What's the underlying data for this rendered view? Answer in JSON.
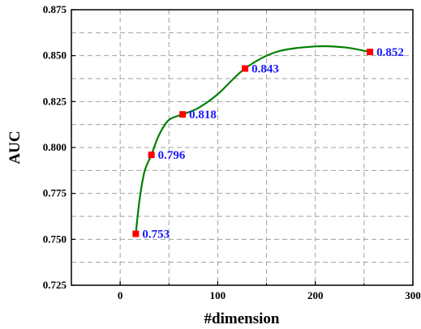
{
  "chart_data": {
    "type": "line",
    "xlabel": "#dimension",
    "ylabel": "AUC",
    "xlim": [
      -50,
      300
    ],
    "ylim": [
      0.725,
      0.875
    ],
    "xticks": [
      "0",
      "100",
      "200",
      "300"
    ],
    "yticks": [
      "0.725",
      "0.750",
      "0.775",
      "0.800",
      "0.825",
      "0.850",
      "0.875"
    ],
    "grid": true,
    "series": [
      {
        "x": [
          16,
          32,
          64,
          128,
          256
        ],
        "values": [
          0.753,
          0.796,
          0.818,
          0.843,
          0.852
        ],
        "labels": [
          "0.753",
          "0.796",
          "0.818",
          "0.843",
          "0.852"
        ]
      }
    ],
    "curve": {
      "x": [
        16,
        20,
        25,
        32,
        40,
        50,
        64,
        80,
        100,
        128,
        160,
        200,
        230,
        256
      ],
      "y": [
        0.753,
        0.772,
        0.787,
        0.796,
        0.807,
        0.815,
        0.818,
        0.8215,
        0.829,
        0.843,
        0.852,
        0.855,
        0.8545,
        0.852
      ]
    },
    "colors": {
      "curve": "#008000",
      "marker": "#ff0000",
      "label": "#1a1aff",
      "grid": "#a0a0a0"
    }
  }
}
